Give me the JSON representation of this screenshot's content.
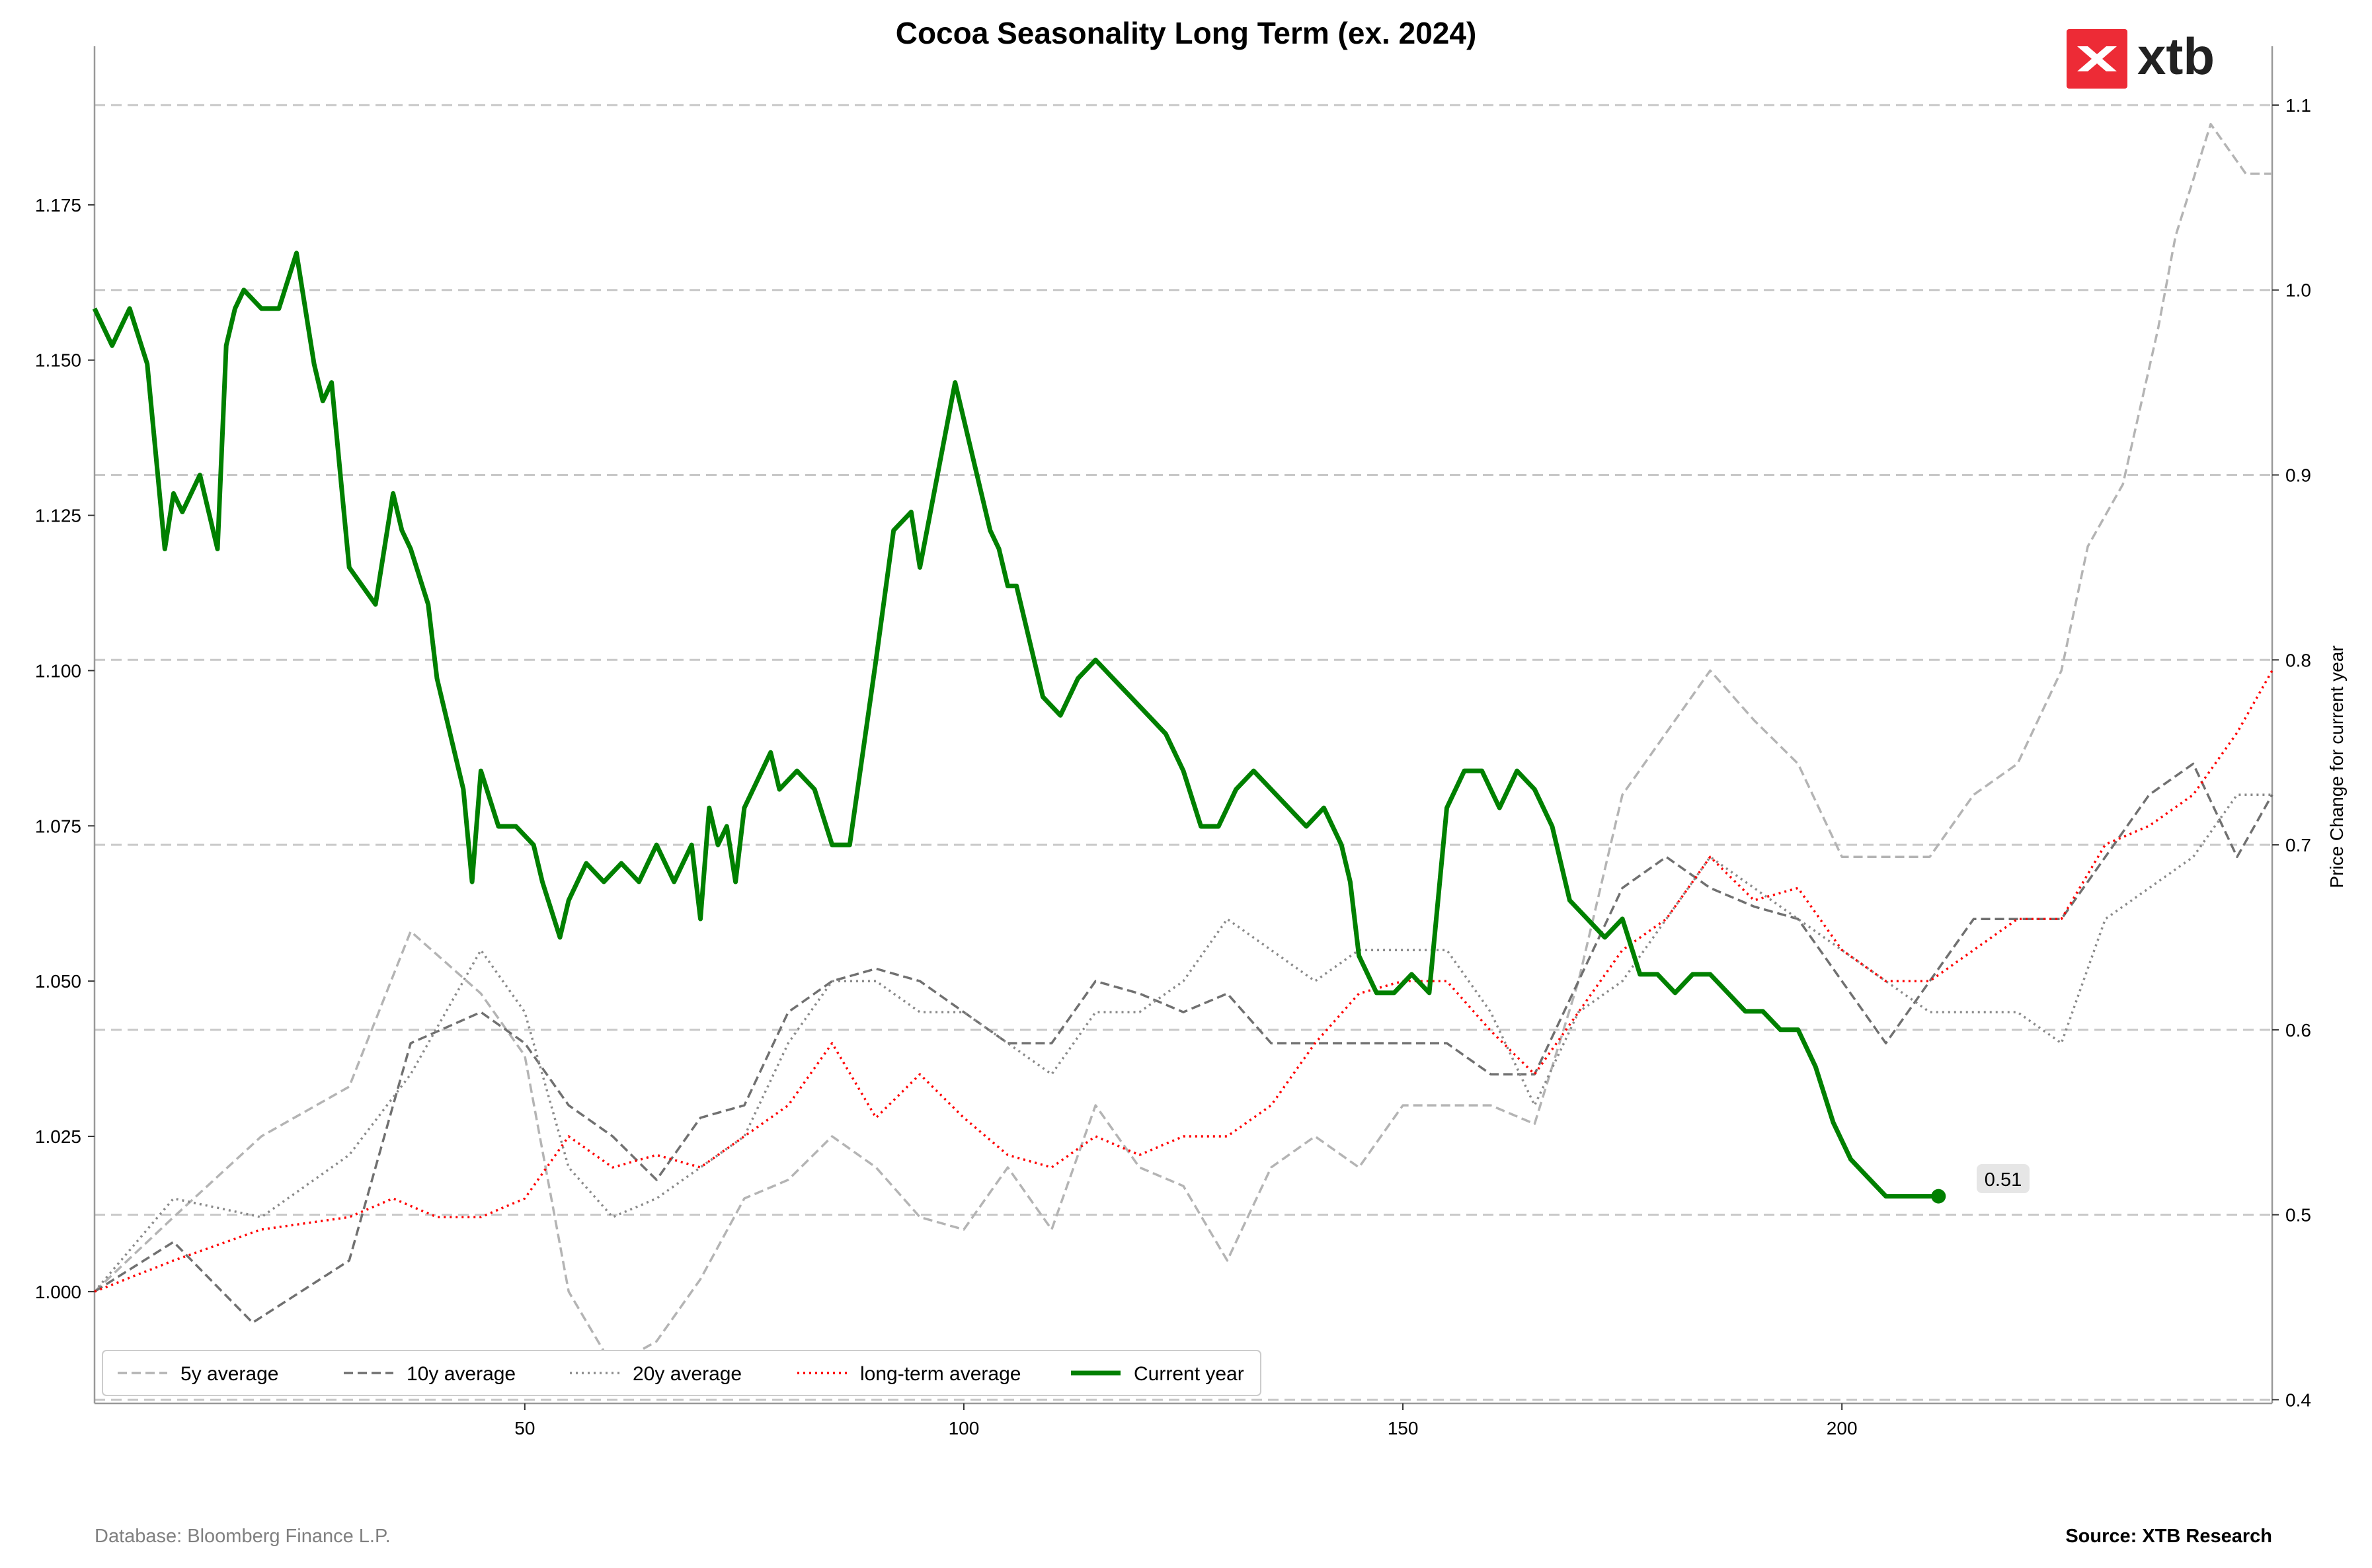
{
  "colors": {
    "five_y": "#b4b4b4",
    "ten_y": "#707070",
    "twenty_y": "#8a8a8a",
    "long_term": "#ff0000",
    "current": "#008000",
    "grid": "#c8c8c8",
    "logo_red": "#ed2b36",
    "callout_bg": "#e6e6e6"
  },
  "logo": {
    "text": "xtb"
  },
  "footer": {
    "left": "Database: Bloomberg Finance L.P.",
    "right": "Source: XTB Research"
  },
  "chart_data": {
    "type": "line",
    "title": "Cocoa Seasonality Long Term (ex. 2024)",
    "xlabel": "",
    "ylabel_left": "",
    "ylabel_right": "Price Change for current year",
    "xlim": [
      1,
      249
    ],
    "ylim_left": [
      0.982,
      1.2
    ],
    "ylim_right": [
      0.398,
      1.13
    ],
    "x_ticks": [
      50,
      100,
      150,
      200
    ],
    "y_ticks_left": [
      "1.000",
      "1.025",
      "1.050",
      "1.075",
      "1.100",
      "1.125",
      "1.150",
      "1.175"
    ],
    "y_ticks_right": [
      "0.4",
      "0.5",
      "0.6",
      "0.7",
      "0.8",
      "0.9",
      "1.0",
      "1.1"
    ],
    "grid": "horizontal dashed (right axis)",
    "legend_position": "bottom-left",
    "end_label": "0.51",
    "series": [
      {
        "name": "5y average",
        "axis": "left",
        "style": "dashed",
        "x": [
          1,
          10,
          20,
          30,
          37,
          45,
          50,
          55,
          60,
          65,
          70,
          75,
          80,
          85,
          90,
          95,
          100,
          105,
          110,
          115,
          120,
          125,
          130,
          135,
          140,
          145,
          150,
          155,
          160,
          165,
          170,
          175,
          180,
          185,
          190,
          195,
          200,
          205,
          210,
          215,
          220,
          225,
          228,
          232,
          236,
          238,
          242,
          246,
          249
        ],
        "y": [
          1.0,
          1.012,
          1.025,
          1.033,
          1.058,
          1.048,
          1.038,
          1.0,
          0.988,
          0.992,
          1.002,
          1.015,
          1.018,
          1.025,
          1.02,
          1.012,
          1.01,
          1.02,
          1.01,
          1.03,
          1.02,
          1.017,
          1.005,
          1.02,
          1.025,
          1.02,
          1.03,
          1.03,
          1.03,
          1.027,
          1.05,
          1.08,
          1.09,
          1.1,
          1.092,
          1.085,
          1.07,
          1.07,
          1.07,
          1.08,
          1.085,
          1.1,
          1.12,
          1.13,
          1.155,
          1.17,
          1.188,
          1.18,
          1.18
        ]
      },
      {
        "name": "10y average",
        "axis": "left",
        "style": "dashed",
        "x": [
          1,
          10,
          19,
          30,
          37,
          45,
          50,
          55,
          60,
          65,
          70,
          75,
          80,
          85,
          90,
          95,
          100,
          105,
          110,
          115,
          120,
          125,
          130,
          135,
          140,
          145,
          150,
          155,
          160,
          165,
          170,
          175,
          180,
          185,
          190,
          195,
          200,
          205,
          210,
          215,
          220,
          225,
          230,
          235,
          240,
          245,
          249
        ],
        "y": [
          1.0,
          1.008,
          0.995,
          1.005,
          1.04,
          1.045,
          1.04,
          1.03,
          1.025,
          1.018,
          1.028,
          1.03,
          1.045,
          1.05,
          1.052,
          1.05,
          1.045,
          1.04,
          1.04,
          1.05,
          1.048,
          1.045,
          1.048,
          1.04,
          1.04,
          1.04,
          1.04,
          1.04,
          1.035,
          1.035,
          1.05,
          1.065,
          1.07,
          1.065,
          1.062,
          1.06,
          1.05,
          1.04,
          1.05,
          1.06,
          1.06,
          1.06,
          1.07,
          1.08,
          1.085,
          1.07,
          1.08
        ]
      },
      {
        "name": "20y average",
        "axis": "left",
        "style": "dotted",
        "x": [
          1,
          10,
          20,
          30,
          37,
          45,
          50,
          55,
          60,
          65,
          70,
          75,
          80,
          85,
          90,
          95,
          100,
          105,
          110,
          115,
          120,
          125,
          130,
          135,
          140,
          145,
          150,
          155,
          160,
          165,
          170,
          175,
          180,
          185,
          190,
          195,
          200,
          205,
          210,
          215,
          220,
          225,
          230,
          235,
          240,
          245,
          249
        ],
        "y": [
          1.0,
          1.015,
          1.012,
          1.022,
          1.035,
          1.055,
          1.045,
          1.02,
          1.012,
          1.015,
          1.02,
          1.025,
          1.04,
          1.05,
          1.05,
          1.045,
          1.045,
          1.04,
          1.035,
          1.045,
          1.045,
          1.05,
          1.06,
          1.055,
          1.05,
          1.055,
          1.055,
          1.055,
          1.045,
          1.03,
          1.045,
          1.05,
          1.06,
          1.07,
          1.065,
          1.06,
          1.055,
          1.05,
          1.045,
          1.045,
          1.045,
          1.04,
          1.06,
          1.065,
          1.07,
          1.08,
          1.08
        ]
      },
      {
        "name": "long-term average",
        "axis": "left",
        "style": "dotted",
        "x": [
          1,
          10,
          20,
          30,
          35,
          40,
          45,
          50,
          55,
          60,
          65,
          70,
          75,
          80,
          85,
          90,
          95,
          100,
          105,
          110,
          115,
          120,
          125,
          130,
          135,
          140,
          145,
          150,
          155,
          160,
          165,
          170,
          175,
          180,
          185,
          190,
          195,
          200,
          205,
          210,
          215,
          220,
          225,
          230,
          235,
          240,
          245,
          249
        ],
        "y": [
          1.0,
          1.005,
          1.01,
          1.012,
          1.015,
          1.012,
          1.012,
          1.015,
          1.025,
          1.02,
          1.022,
          1.02,
          1.025,
          1.03,
          1.04,
          1.028,
          1.035,
          1.028,
          1.022,
          1.02,
          1.025,
          1.022,
          1.025,
          1.025,
          1.03,
          1.04,
          1.048,
          1.05,
          1.05,
          1.042,
          1.035,
          1.045,
          1.055,
          1.06,
          1.07,
          1.063,
          1.065,
          1.055,
          1.05,
          1.05,
          1.055,
          1.06,
          1.06,
          1.072,
          1.075,
          1.08,
          1.09,
          1.1
        ]
      },
      {
        "name": "Current year",
        "axis": "right",
        "style": "solid",
        "x": [
          1,
          3,
          5,
          7,
          9,
          10,
          11,
          12,
          13,
          14,
          15,
          16,
          17,
          18,
          20,
          22,
          24,
          26,
          27,
          28,
          30,
          33,
          35,
          36,
          37,
          39,
          40,
          41,
          43,
          44,
          45,
          47,
          49,
          51,
          52,
          54,
          55,
          57,
          59,
          61,
          63,
          65,
          67,
          69,
          70,
          71,
          72,
          73,
          74,
          75,
          77,
          78,
          79,
          81,
          83,
          85,
          87,
          90,
          92,
          94,
          95,
          97,
          99,
          101,
          103,
          104,
          105,
          106,
          107,
          109,
          111,
          113,
          115,
          117,
          119,
          121,
          123,
          125,
          127,
          129,
          131,
          133,
          135,
          137,
          139,
          141,
          143,
          144,
          145,
          147,
          149,
          151,
          153,
          155,
          157,
          159,
          161,
          163,
          165,
          167,
          169,
          171,
          173,
          175,
          177,
          179,
          181,
          183,
          185,
          187,
          189,
          191,
          193,
          195,
          197,
          199,
          201,
          203,
          205,
          207,
          209,
          211
        ],
        "y": [
          0.99,
          0.97,
          0.99,
          0.96,
          0.86,
          0.89,
          0.88,
          0.89,
          0.9,
          0.88,
          0.86,
          0.97,
          0.99,
          1.0,
          0.99,
          0.99,
          1.02,
          0.96,
          0.94,
          0.95,
          0.85,
          0.83,
          0.89,
          0.87,
          0.86,
          0.83,
          0.79,
          0.77,
          0.73,
          0.68,
          0.74,
          0.71,
          0.71,
          0.7,
          0.68,
          0.65,
          0.67,
          0.69,
          0.68,
          0.69,
          0.68,
          0.7,
          0.68,
          0.7,
          0.66,
          0.72,
          0.7,
          0.71,
          0.68,
          0.72,
          0.74,
          0.75,
          0.73,
          0.74,
          0.73,
          0.7,
          0.7,
          0.8,
          0.87,
          0.88,
          0.85,
          0.9,
          0.95,
          0.91,
          0.87,
          0.86,
          0.84,
          0.84,
          0.82,
          0.78,
          0.77,
          0.79,
          0.8,
          0.79,
          0.78,
          0.77,
          0.76,
          0.74,
          0.71,
          0.71,
          0.73,
          0.74,
          0.73,
          0.72,
          0.71,
          0.72,
          0.7,
          0.68,
          0.64,
          0.62,
          0.62,
          0.63,
          0.62,
          0.72,
          0.74,
          0.74,
          0.72,
          0.74,
          0.73,
          0.71,
          0.67,
          0.66,
          0.65,
          0.66,
          0.63,
          0.63,
          0.62,
          0.63,
          0.63,
          0.62,
          0.61,
          0.61,
          0.6,
          0.6,
          0.58,
          0.55,
          0.53,
          0.52,
          0.51,
          0.51,
          0.51,
          0.51
        ]
      }
    ]
  }
}
